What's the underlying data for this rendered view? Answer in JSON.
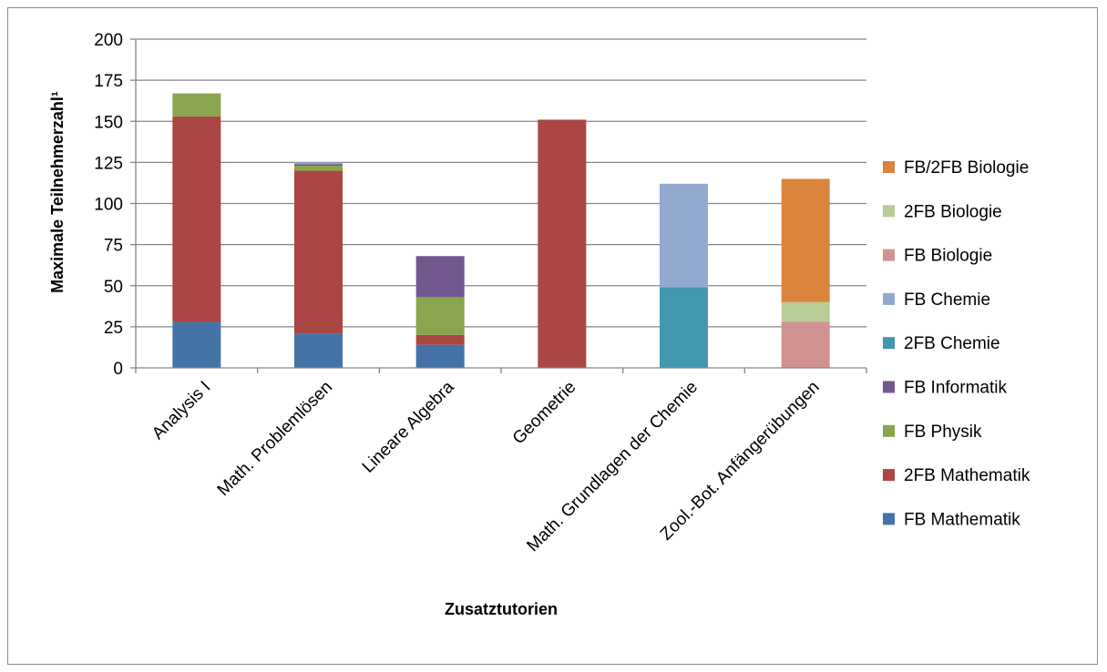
{
  "chart_data": {
    "type": "bar",
    "stacked": true,
    "categories": [
      "Analysis I",
      "Math. Problemlösen",
      "Lineare Algebra",
      "Geometrie",
      "Math. Grundlagen der Chemie",
      "Zool.-Bot. Anfängerübungen"
    ],
    "series": [
      {
        "name": "FB Mathematik",
        "color": "#4573A7",
        "values": [
          28,
          21,
          14,
          0,
          0,
          0
        ]
      },
      {
        "name": "2FB Mathematik",
        "color": "#AA4643",
        "values": [
          125,
          99,
          6,
          151,
          0,
          0
        ]
      },
      {
        "name": "FB Physik",
        "color": "#89A54E",
        "values": [
          14,
          3,
          23,
          0,
          0,
          0
        ]
      },
      {
        "name": "FB Informatik",
        "color": "#71588F",
        "values": [
          0,
          1,
          25,
          0,
          0,
          0
        ]
      },
      {
        "name": "2FB Chemie",
        "color": "#4198AF",
        "values": [
          0,
          0,
          0,
          0,
          49,
          0
        ]
      },
      {
        "name": "FB Chemie",
        "color": "#93A9CF",
        "values": [
          0,
          1,
          0,
          0,
          63,
          0
        ]
      },
      {
        "name": "FB Biologie",
        "color": "#D19392",
        "values": [
          0,
          0,
          0,
          0,
          0,
          28
        ]
      },
      {
        "name": "2FB Biologie",
        "color": "#B9CD96",
        "values": [
          0,
          0,
          0,
          0,
          0,
          12
        ]
      },
      {
        "name": "FB/2FB Biologie",
        "color": "#DB843D",
        "values": [
          0,
          0,
          0,
          0,
          0,
          75
        ]
      }
    ],
    "xlabel": "Zusatztutorien",
    "ylabel": "Maximale Teilnehmerzahl¹",
    "ylim": [
      0,
      200
    ],
    "yticks": [
      "0",
      "25",
      "50",
      "75",
      "100",
      "125",
      "150",
      "175",
      "200"
    ],
    "grid": true,
    "legend_position": "right",
    "gridline_color": "#868686"
  }
}
